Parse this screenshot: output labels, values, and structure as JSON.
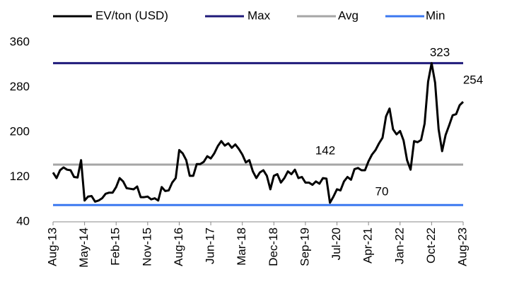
{
  "chart_data": {
    "type": "line",
    "categories": [
      "Aug-13",
      null,
      null,
      null,
      null,
      null,
      null,
      null,
      null,
      "May-14",
      null,
      null,
      null,
      null,
      null,
      null,
      null,
      null,
      "Feb-15",
      null,
      null,
      null,
      null,
      null,
      null,
      null,
      null,
      "Nov-15",
      null,
      null,
      null,
      null,
      null,
      null,
      null,
      null,
      "Aug-16",
      null,
      null,
      null,
      null,
      null,
      null,
      null,
      null,
      "Jun-17",
      null,
      null,
      null,
      null,
      null,
      null,
      null,
      null,
      "Mar-18",
      null,
      null,
      null,
      null,
      null,
      null,
      null,
      null,
      "Dec-18",
      null,
      null,
      null,
      null,
      null,
      null,
      null,
      null,
      "Sep-19",
      null,
      null,
      null,
      null,
      null,
      null,
      null,
      null,
      "Jul-20",
      null,
      null,
      null,
      null,
      null,
      null,
      null,
      null,
      "Apr-21",
      null,
      null,
      null,
      null,
      null,
      null,
      null,
      null,
      "Jan-22",
      null,
      null,
      null,
      null,
      null,
      null,
      null,
      null,
      "Oct-22",
      null,
      null,
      null,
      null,
      null,
      null,
      null,
      null,
      "Aug-23"
    ],
    "series": [
      {
        "name": "EV/ton (USD)",
        "color": "#000000",
        "values": [
          128,
          118,
          132,
          137,
          133,
          132,
          120,
          119,
          150,
          78,
          85,
          86,
          76,
          78,
          82,
          90,
          92,
          92,
          102,
          118,
          112,
          100,
          99,
          98,
          103,
          84,
          84,
          85,
          80,
          82,
          78,
          102,
          95,
          96,
          110,
          118,
          168,
          162,
          150,
          122,
          122,
          143,
          143,
          147,
          157,
          153,
          162,
          175,
          184,
          176,
          180,
          172,
          178,
          170,
          160,
          146,
          150,
          130,
          118,
          128,
          132,
          122,
          98,
          122,
          125,
          110,
          118,
          130,
          125,
          133,
          118,
          120,
          110,
          110,
          106,
          112,
          108,
          118,
          117,
          74,
          85,
          98,
          96,
          112,
          120,
          115,
          134,
          136,
          132,
          132,
          148,
          160,
          168,
          180,
          190,
          228,
          242,
          205,
          196,
          202,
          185,
          150,
          133,
          184,
          182,
          186,
          215,
          290,
          323,
          288,
          205,
          166,
          195,
          212,
          230,
          232,
          248,
          254
        ]
      }
    ],
    "reference_lines": [
      {
        "name": "Max",
        "color": "#1f1a7a",
        "value": 323
      },
      {
        "name": "Avg",
        "color": "#a6a6a6",
        "value": 142
      },
      {
        "name": "Min",
        "color": "#3b78f0",
        "value": 70
      }
    ],
    "ylim": [
      40,
      360
    ],
    "yticks": [
      40,
      120,
      200,
      280,
      360
    ]
  }
}
